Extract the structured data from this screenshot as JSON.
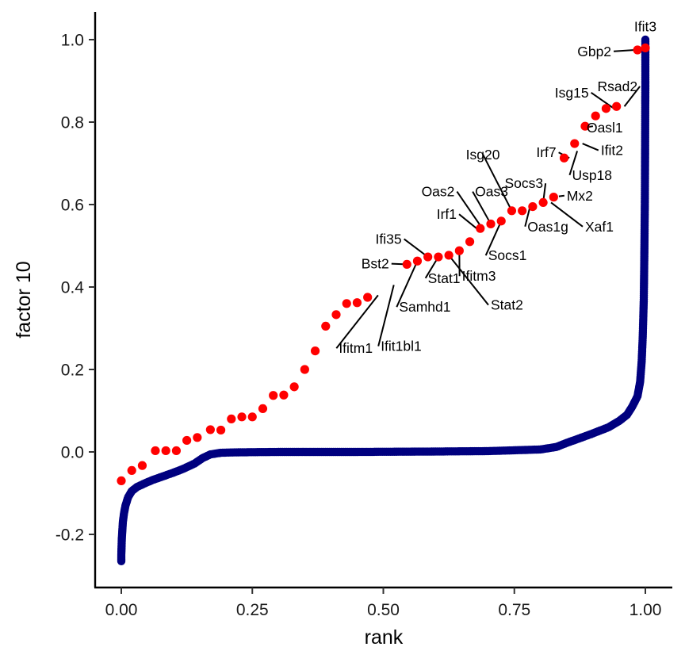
{
  "chart_data": {
    "type": "scatter",
    "title": "",
    "xlabel": "rank",
    "ylabel": "factor 10",
    "xlim": [
      -0.05,
      1.05
    ],
    "ylim": [
      -0.33,
      1.07
    ],
    "x_ticks": [
      0,
      0.25,
      0.5,
      0.75,
      1
    ],
    "x_tick_labels": [
      "0.00",
      "0.25",
      "0.50",
      "0.75",
      "1.00"
    ],
    "y_ticks": [
      -0.2,
      0,
      0.2,
      0.4,
      0.6,
      0.8,
      1.0
    ],
    "y_tick_labels": [
      "-0.2",
      "0.0",
      "0.2",
      "0.4",
      "0.6",
      "0.8",
      "1.0"
    ],
    "grid": false,
    "colors": {
      "background_genes": "#00007f",
      "highlighted_genes": "#ff0000"
    },
    "background_curve": [
      [
        0.0,
        -0.265
      ],
      [
        0.0,
        -0.25
      ],
      [
        0.0005,
        -0.23
      ],
      [
        0.001,
        -0.21
      ],
      [
        0.002,
        -0.19
      ],
      [
        0.003,
        -0.17
      ],
      [
        0.005,
        -0.15
      ],
      [
        0.008,
        -0.13
      ],
      [
        0.013,
        -0.11
      ],
      [
        0.02,
        -0.095
      ],
      [
        0.03,
        -0.085
      ],
      [
        0.045,
        -0.076
      ],
      [
        0.06,
        -0.068
      ],
      [
        0.08,
        -0.059
      ],
      [
        0.1,
        -0.05
      ],
      [
        0.12,
        -0.04
      ],
      [
        0.14,
        -0.028
      ],
      [
        0.155,
        -0.015
      ],
      [
        0.17,
        -0.006
      ],
      [
        0.19,
        -0.002
      ],
      [
        0.22,
        -0.001
      ],
      [
        0.3,
        0.0
      ],
      [
        0.45,
        0.0
      ],
      [
        0.6,
        0.001
      ],
      [
        0.7,
        0.002
      ],
      [
        0.8,
        0.006
      ],
      [
        0.83,
        0.012
      ],
      [
        0.85,
        0.022
      ],
      [
        0.87,
        0.031
      ],
      [
        0.9,
        0.045
      ],
      [
        0.93,
        0.06
      ],
      [
        0.95,
        0.075
      ],
      [
        0.965,
        0.09
      ],
      [
        0.975,
        0.11
      ],
      [
        0.985,
        0.135
      ],
      [
        0.99,
        0.17
      ],
      [
        0.993,
        0.22
      ],
      [
        0.995,
        0.28
      ],
      [
        0.997,
        0.37
      ],
      [
        0.998,
        0.47
      ],
      [
        0.999,
        0.6
      ],
      [
        0.9995,
        0.72
      ],
      [
        0.9998,
        0.84
      ],
      [
        1.0,
        0.89
      ],
      [
        1.0,
        0.94
      ],
      [
        1.0,
        0.965
      ],
      [
        1.0,
        0.98
      ],
      [
        1.0,
        1.0
      ]
    ],
    "highlighted_points": [
      [
        0.0,
        -0.07
      ],
      [
        0.02,
        -0.045
      ],
      [
        0.04,
        -0.033
      ],
      [
        0.065,
        0.003
      ],
      [
        0.085,
        0.003
      ],
      [
        0.105,
        0.003
      ],
      [
        0.125,
        0.028
      ],
      [
        0.145,
        0.035
      ],
      [
        0.17,
        0.054
      ],
      [
        0.19,
        0.053
      ],
      [
        0.21,
        0.08
      ],
      [
        0.23,
        0.085
      ],
      [
        0.25,
        0.085
      ],
      [
        0.27,
        0.105
      ],
      [
        0.29,
        0.137
      ],
      [
        0.31,
        0.138
      ],
      [
        0.33,
        0.158
      ],
      [
        0.35,
        0.2
      ],
      [
        0.37,
        0.245
      ],
      [
        0.39,
        0.305
      ],
      [
        0.41,
        0.333
      ],
      [
        0.43,
        0.36
      ],
      [
        0.45,
        0.362
      ],
      [
        0.47,
        0.375
      ],
      [
        0.545,
        0.455
      ],
      [
        0.565,
        0.463
      ],
      [
        0.585,
        0.473
      ],
      [
        0.605,
        0.473
      ],
      [
        0.625,
        0.477
      ],
      [
        0.645,
        0.488
      ],
      [
        0.665,
        0.51
      ],
      [
        0.685,
        0.542
      ],
      [
        0.705,
        0.553
      ],
      [
        0.725,
        0.56
      ],
      [
        0.745,
        0.585
      ],
      [
        0.765,
        0.585
      ],
      [
        0.785,
        0.595
      ],
      [
        0.805,
        0.605
      ],
      [
        0.825,
        0.618
      ],
      [
        0.845,
        0.713
      ],
      [
        0.865,
        0.748
      ],
      [
        0.885,
        0.79
      ],
      [
        0.905,
        0.815
      ],
      [
        0.925,
        0.833
      ],
      [
        0.945,
        0.838
      ],
      [
        0.985,
        0.975
      ],
      [
        1.0,
        0.98
      ]
    ],
    "labels": [
      {
        "text": "Ifit3",
        "x": 1.0,
        "y": 1.0,
        "tx": 1.0,
        "ty": 1.02,
        "anchor": "middle",
        "leader": false
      },
      {
        "text": "Gbp2",
        "x": 0.98,
        "y": 0.975,
        "tx": 0.935,
        "ty": 0.96,
        "anchor": "end",
        "leader": true
      },
      {
        "text": "Rsad2",
        "x": 0.96,
        "y": 0.838,
        "tx": 0.985,
        "ty": 0.875,
        "anchor": "end",
        "leader": true
      },
      {
        "text": "Isg15",
        "x": 0.94,
        "y": 0.833,
        "tx": 0.892,
        "ty": 0.86,
        "anchor": "end",
        "leader": true
      },
      {
        "text": "Oasl1",
        "x": 0.9,
        "y": 0.79,
        "tx": 0.888,
        "ty": 0.775,
        "anchor": "start",
        "leader": true
      },
      {
        "text": "Ifit2",
        "x": 0.88,
        "y": 0.748,
        "tx": 0.915,
        "ty": 0.72,
        "anchor": "start",
        "leader": true
      },
      {
        "text": "Irf7",
        "x": 0.855,
        "y": 0.713,
        "tx": 0.83,
        "ty": 0.715,
        "anchor": "end",
        "leader": true
      },
      {
        "text": "Usp18",
        "x": 0.87,
        "y": 0.73,
        "tx": 0.86,
        "ty": 0.66,
        "anchor": "start",
        "leader": true
      },
      {
        "text": "Isg20",
        "x": 0.745,
        "y": 0.585,
        "tx": 0.69,
        "ty": 0.71,
        "anchor": "middle",
        "leader": true
      },
      {
        "text": "Socs3",
        "x": 0.805,
        "y": 0.605,
        "tx": 0.805,
        "ty": 0.64,
        "anchor": "end",
        "leader": true
      },
      {
        "text": "Mx2",
        "x": 0.835,
        "y": 0.62,
        "tx": 0.85,
        "ty": 0.61,
        "anchor": "start",
        "leader": true
      },
      {
        "text": "Oas2",
        "x": 0.69,
        "y": 0.54,
        "tx": 0.636,
        "ty": 0.62,
        "anchor": "end",
        "leader": true
      },
      {
        "text": "Oas3",
        "x": 0.705,
        "y": 0.553,
        "tx": 0.675,
        "ty": 0.62,
        "anchor": "start",
        "leader": true
      },
      {
        "text": "Xaf1",
        "x": 0.82,
        "y": 0.605,
        "tx": 0.885,
        "ty": 0.535,
        "anchor": "start",
        "leader": true
      },
      {
        "text": "Oas1g",
        "x": 0.78,
        "y": 0.595,
        "tx": 0.775,
        "ty": 0.535,
        "anchor": "start",
        "leader": true
      },
      {
        "text": "Irf1",
        "x": 0.68,
        "y": 0.54,
        "tx": 0.64,
        "ty": 0.565,
        "anchor": "end",
        "leader": true
      },
      {
        "text": "Socs1",
        "x": 0.725,
        "y": 0.56,
        "tx": 0.7,
        "ty": 0.465,
        "anchor": "start",
        "leader": true
      },
      {
        "text": "Ifi35",
        "x": 0.585,
        "y": 0.473,
        "tx": 0.535,
        "ty": 0.505,
        "anchor": "end",
        "leader": true
      },
      {
        "text": "Bst2",
        "x": 0.545,
        "y": 0.455,
        "tx": 0.511,
        "ty": 0.445,
        "anchor": "end",
        "leader": true
      },
      {
        "text": "Stat1",
        "x": 0.605,
        "y": 0.473,
        "tx": 0.585,
        "ty": 0.41,
        "anchor": "start",
        "leader": true
      },
      {
        "text": "Ifitm3",
        "x": 0.645,
        "y": 0.488,
        "tx": 0.65,
        "ty": 0.415,
        "anchor": "start",
        "leader": true
      },
      {
        "text": "Samhd1",
        "x": 0.565,
        "y": 0.463,
        "tx": 0.53,
        "ty": 0.34,
        "anchor": "start",
        "leader": true
      },
      {
        "text": "Stat2",
        "x": 0.625,
        "y": 0.477,
        "tx": 0.705,
        "ty": 0.345,
        "anchor": "start",
        "leader": true
      },
      {
        "text": "Ifitm1",
        "x": 0.49,
        "y": 0.38,
        "tx": 0.415,
        "ty": 0.24,
        "anchor": "start",
        "leader": true
      },
      {
        "text": "Ifit1bl1",
        "x": 0.52,
        "y": 0.405,
        "tx": 0.495,
        "ty": 0.245,
        "anchor": "start",
        "leader": true
      }
    ]
  }
}
